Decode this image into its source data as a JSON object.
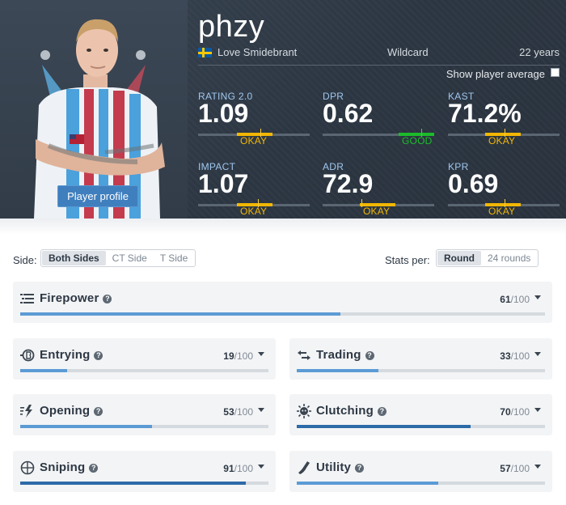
{
  "player": {
    "nickname": "phzy",
    "real_name": "Love Smidebrant",
    "country_flag": "sweden-flag-icon",
    "team": "Wildcard",
    "age": "22 years",
    "show_average_label": "Show player average",
    "show_average_checked": false,
    "profile_button": "Player profile"
  },
  "stats": [
    {
      "label": "RATING 2.0",
      "value": "1.09",
      "grade": "OKAY",
      "level": "okay"
    },
    {
      "label": "DPR",
      "value": "0.62",
      "grade": "GOOD",
      "level": "good"
    },
    {
      "label": "KAST",
      "value": "71.2%",
      "grade": "OKAY",
      "level": "okay"
    },
    {
      "label": "IMPACT",
      "value": "1.07",
      "grade": "OKAY",
      "level": "okay"
    },
    {
      "label": "ADR",
      "value": "72.9",
      "grade": "OKAY",
      "level": "okay"
    },
    {
      "label": "KPR",
      "value": "0.69",
      "grade": "OKAY",
      "level": "okay"
    }
  ],
  "filters": {
    "side_label": "Side:",
    "side_options": [
      "Both Sides",
      "CT Side",
      "T Side"
    ],
    "side_selected": "Both Sides",
    "stats_per_label": "Stats per:",
    "stats_per_options": [
      "Round",
      "24 rounds"
    ],
    "stats_per_selected": "Round"
  },
  "skills": [
    {
      "name": "Firepower",
      "icon": "firepower-icon",
      "score": "61",
      "max": "/100",
      "fill_pct": 61
    },
    {
      "name": "Entrying",
      "icon": "entrying-icon",
      "score": "19",
      "max": "/100",
      "fill_pct": 19
    },
    {
      "name": "Trading",
      "icon": "trading-icon",
      "score": "33",
      "max": "/100",
      "fill_pct": 33
    },
    {
      "name": "Opening",
      "icon": "opening-icon",
      "score": "53",
      "max": "/100",
      "fill_pct": 53
    },
    {
      "name": "Clutching",
      "icon": "clutching-icon",
      "score": "70",
      "max": "/100",
      "fill_pct": 70
    },
    {
      "name": "Sniping",
      "icon": "sniping-icon",
      "score": "91",
      "max": "/100",
      "fill_pct": 91
    },
    {
      "name": "Utility",
      "icon": "utility-icon",
      "score": "57",
      "max": "/100",
      "fill_pct": 57
    }
  ],
  "colors": {
    "header_bg": "#2c3642",
    "stat_label": "#9fc7ee",
    "okay": "#f2b704",
    "good": "#1dbb2a",
    "button_blue": "#3f7fbe",
    "bar_light": "#5b9bd5",
    "bar_dark": "#2d6aa8"
  }
}
